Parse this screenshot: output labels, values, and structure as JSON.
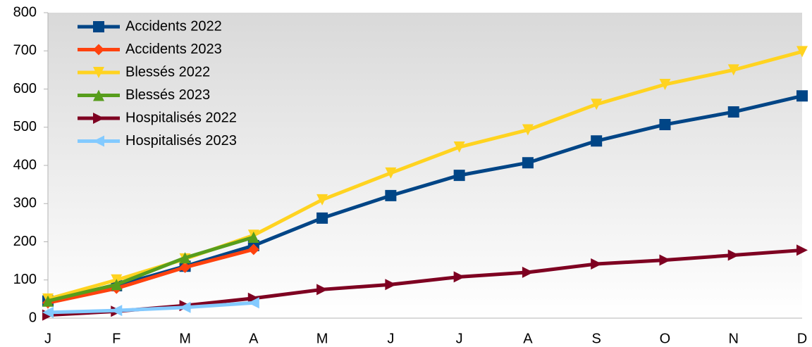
{
  "chart_data": {
    "type": "line",
    "categories": [
      "J",
      "F",
      "M",
      "A",
      "M",
      "J",
      "J",
      "A",
      "S",
      "O",
      "N",
      "D"
    ],
    "series": [
      {
        "name": "Accidents 2022",
        "color": "#004586",
        "marker": "square",
        "values": [
          45,
          85,
          136,
          190,
          262,
          321,
          374,
          407,
          464,
          507,
          540,
          582
        ]
      },
      {
        "name": "Accidents 2023",
        "color": "#ff420e",
        "marker": "diamond",
        "values": [
          40,
          78,
          133,
          180,
          null,
          null,
          null,
          null,
          null,
          null,
          null,
          null
        ]
      },
      {
        "name": "Blessés 2022",
        "color": "#ffd320",
        "marker": "triangle-down",
        "values": [
          50,
          100,
          155,
          217,
          310,
          380,
          448,
          493,
          560,
          612,
          650,
          698
        ]
      },
      {
        "name": "Blessés 2023",
        "color": "#579d1c",
        "marker": "triangle-up",
        "values": [
          45,
          88,
          158,
          212,
          null,
          null,
          null,
          null,
          null,
          null,
          null,
          null
        ]
      },
      {
        "name": "Hospitalisés 2022",
        "color": "#7e0021",
        "marker": "triangle-right",
        "values": [
          8,
          18,
          33,
          52,
          75,
          88,
          108,
          120,
          142,
          152,
          165,
          178
        ]
      },
      {
        "name": "Hospitalisés 2023",
        "color": "#83caff",
        "marker": "triangle-left",
        "values": [
          15,
          20,
          28,
          40,
          null,
          null,
          null,
          null,
          null,
          null,
          null,
          null
        ]
      }
    ],
    "ylim": [
      0,
      800
    ],
    "yticks": [
      0,
      100,
      200,
      300,
      400,
      500,
      600,
      700,
      800
    ],
    "grid": false,
    "legend": "top-left"
  }
}
